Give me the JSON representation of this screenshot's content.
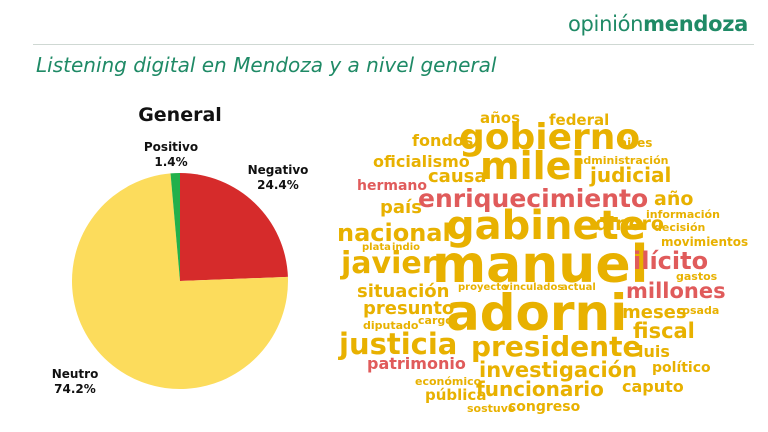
{
  "header": {
    "brand_light": "opinión",
    "brand_bold": "mendoza",
    "subtitle": "Listening digital en Mendoza y a nivel general"
  },
  "colors": {
    "brand": "#1f8a66",
    "negativo": "#d62b2b",
    "neutro": "#fcdc5c",
    "positivo": "#22b04b",
    "cloud_gold": "#e8b100",
    "cloud_red": "#e05b5b"
  },
  "chart_data": {
    "type": "pie",
    "title": "General",
    "slices": [
      {
        "label": "Negativo",
        "value_label": "24.4%",
        "value": 24.4,
        "color": "#d62b2b"
      },
      {
        "label": "Neutro",
        "value_label": "74.2%",
        "value": 74.2,
        "color": "#fcdc5c"
      },
      {
        "label": "Positivo",
        "value_label": "1.4%",
        "value": 1.4,
        "color": "#22b04b"
      }
    ]
  },
  "word_cloud": {
    "words": [
      {
        "text": "años",
        "color": "gold"
      },
      {
        "text": "federal",
        "color": "gold"
      },
      {
        "text": "fondos",
        "color": "gold"
      },
      {
        "text": "gobierno",
        "color": "gold"
      },
      {
        "text": "aires",
        "color": "gold"
      },
      {
        "text": "oficialismo",
        "color": "gold"
      },
      {
        "text": "milei",
        "color": "gold"
      },
      {
        "text": "administración",
        "color": "gold"
      },
      {
        "text": "hermano",
        "color": "red"
      },
      {
        "text": "causa",
        "color": "gold"
      },
      {
        "text": "judicial",
        "color": "gold"
      },
      {
        "text": "enriquecimiento",
        "color": "red"
      },
      {
        "text": "año",
        "color": "gold"
      },
      {
        "text": "país",
        "color": "gold"
      },
      {
        "text": "información",
        "color": "gold"
      },
      {
        "text": "nacional",
        "color": "gold"
      },
      {
        "text": "gabinete",
        "color": "gold"
      },
      {
        "text": "dinero",
        "color": "gold"
      },
      {
        "text": "decisión",
        "color": "gold"
      },
      {
        "text": "plata",
        "color": "gold"
      },
      {
        "text": "indio",
        "color": "gold"
      },
      {
        "text": "movimientos",
        "color": "gold"
      },
      {
        "text": "javier",
        "color": "gold"
      },
      {
        "text": "manuel",
        "color": "gold"
      },
      {
        "text": "ilícito",
        "color": "red"
      },
      {
        "text": "gastos",
        "color": "gold"
      },
      {
        "text": "situación",
        "color": "gold"
      },
      {
        "text": "proyecto",
        "color": "gold"
      },
      {
        "text": "vinculados",
        "color": "gold"
      },
      {
        "text": "actual",
        "color": "gold"
      },
      {
        "text": "millones",
        "color": "red"
      },
      {
        "text": "presunto",
        "color": "gold"
      },
      {
        "text": "adorni",
        "color": "gold"
      },
      {
        "text": "meses",
        "color": "gold"
      },
      {
        "text": "rosada",
        "color": "gold"
      },
      {
        "text": "diputado",
        "color": "gold"
      },
      {
        "text": "cargo",
        "color": "gold"
      },
      {
        "text": "fiscal",
        "color": "gold"
      },
      {
        "text": "justicia",
        "color": "gold"
      },
      {
        "text": "presidente",
        "color": "gold"
      },
      {
        "text": "luis",
        "color": "gold"
      },
      {
        "text": "patrimonio",
        "color": "red"
      },
      {
        "text": "político",
        "color": "gold"
      },
      {
        "text": "investigación",
        "color": "gold"
      },
      {
        "text": "económico",
        "color": "gold"
      },
      {
        "text": "funcionario",
        "color": "gold"
      },
      {
        "text": "caputo",
        "color": "gold"
      },
      {
        "text": "pública",
        "color": "gold"
      },
      {
        "text": "sostuvo",
        "color": "gold"
      },
      {
        "text": "congreso",
        "color": "gold"
      }
    ]
  }
}
